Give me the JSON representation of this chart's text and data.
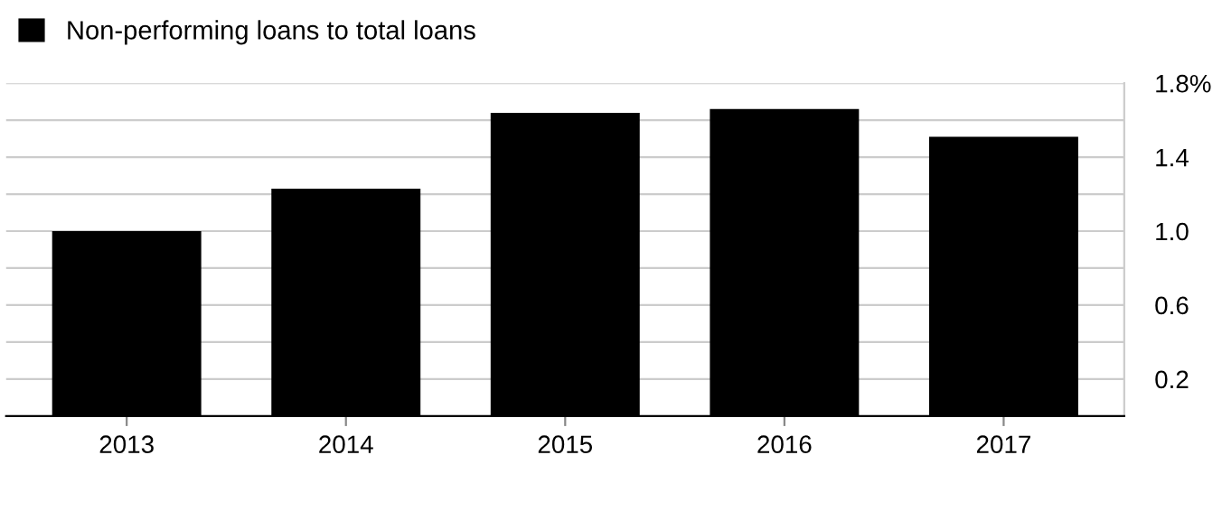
{
  "chart_data": {
    "type": "bar",
    "categories": [
      "2013",
      "2014",
      "2015",
      "2016",
      "2017"
    ],
    "series": [
      {
        "name": "Non-performing loans to total loans",
        "color": "#000000",
        "values": [
          1.0,
          1.23,
          1.64,
          1.66,
          1.51
        ]
      }
    ],
    "ylim": [
      0,
      1.8
    ],
    "yticks": [
      {
        "value": 0.2,
        "label": "0.2"
      },
      {
        "value": 0.4,
        "label": null
      },
      {
        "value": 0.6,
        "label": "0.6"
      },
      {
        "value": 0.8,
        "label": null
      },
      {
        "value": 1.0,
        "label": "1.0"
      },
      {
        "value": 1.2,
        "label": null
      },
      {
        "value": 1.4,
        "label": "1.4"
      },
      {
        "value": 1.6,
        "label": null
      },
      {
        "value": 1.8,
        "label": "1.8%"
      }
    ],
    "grid": "y",
    "legend": "top left"
  }
}
